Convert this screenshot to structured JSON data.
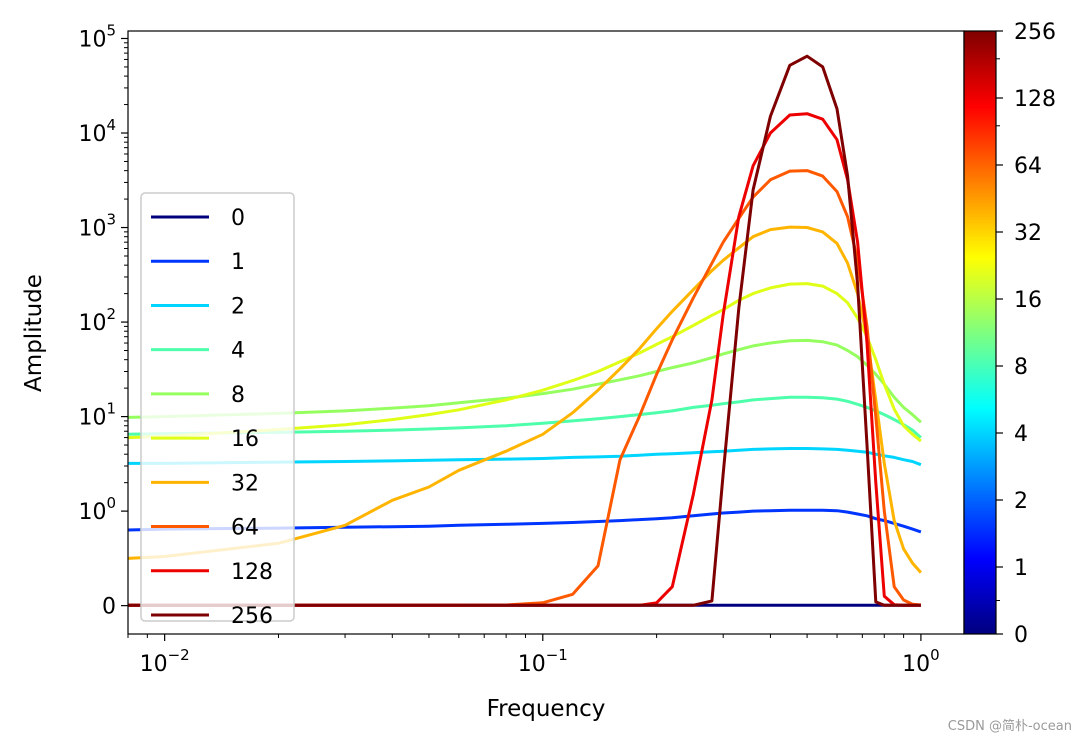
{
  "chart_data": {
    "type": "line",
    "title": "",
    "xlabel": "Frequency",
    "ylabel": "Amplitude",
    "xscale": "log",
    "yscale": "symlog",
    "xlim": [
      0.008,
      1.3
    ],
    "ylim": [
      -0.3,
      120000
    ],
    "grid": false,
    "legend_loc": "center-left",
    "x_ticks": [
      {
        "value": 0.01,
        "base": "10",
        "exp": "−2"
      },
      {
        "value": 0.1,
        "base": "10",
        "exp": "−1"
      },
      {
        "value": 1,
        "base": "10",
        "exp": "0"
      }
    ],
    "y_ticks": [
      {
        "value": 0,
        "label": "0",
        "base": "",
        "exp": ""
      },
      {
        "value": 1,
        "label": "",
        "base": "10",
        "exp": "0"
      },
      {
        "value": 10,
        "label": "",
        "base": "10",
        "exp": "1"
      },
      {
        "value": 100,
        "label": "",
        "base": "10",
        "exp": "2"
      },
      {
        "value": 1000,
        "label": "",
        "base": "10",
        "exp": "3"
      },
      {
        "value": 10000,
        "label": "",
        "base": "10",
        "exp": "4"
      },
      {
        "value": 100000,
        "label": "",
        "base": "10",
        "exp": "5"
      }
    ],
    "x": [
      0.008,
      0.01,
      0.02,
      0.03,
      0.04,
      0.05,
      0.06,
      0.08,
      0.1,
      0.12,
      0.14,
      0.16,
      0.18,
      0.2,
      0.22,
      0.25,
      0.28,
      0.3,
      0.33,
      0.36,
      0.4,
      0.45,
      0.5,
      0.55,
      0.6,
      0.64,
      0.68,
      0.72,
      0.76,
      0.8,
      0.85,
      0.9,
      0.95,
      1.0
    ],
    "series": [
      {
        "name": "0",
        "color": "#00007f",
        "values": [
          0.0035,
          0.0035,
          0.0035,
          0.0035,
          0.0035,
          0.0035,
          0.0035,
          0.0035,
          0.0035,
          0.0035,
          0.0035,
          0.0035,
          0.0035,
          0.0035,
          0.0035,
          0.0035,
          0.0035,
          0.0035,
          0.0035,
          0.0035,
          0.0035,
          0.0035,
          0.0035,
          0.0035,
          0.0035,
          0.0035,
          0.0035,
          0.0035,
          0.0035,
          0.0035,
          0.0035,
          0.0035,
          0.0035,
          0.0035
        ]
      },
      {
        "name": "1",
        "color": "#0035ff",
        "values": [
          0.8,
          0.81,
          0.82,
          0.83,
          0.835,
          0.84,
          0.85,
          0.86,
          0.87,
          0.88,
          0.89,
          0.9,
          0.91,
          0.92,
          0.93,
          0.95,
          0.97,
          0.98,
          0.99,
          1.0,
          1.01,
          1.02,
          1.02,
          1.02,
          1.01,
          0.99,
          0.97,
          0.95,
          0.92,
          0.9,
          0.87,
          0.84,
          0.81,
          0.78
        ]
      },
      {
        "name": "2",
        "color": "#00d5ff",
        "values": [
          3.2,
          3.2,
          3.3,
          3.35,
          3.4,
          3.45,
          3.5,
          3.55,
          3.6,
          3.7,
          3.75,
          3.8,
          3.9,
          4.0,
          4.05,
          4.15,
          4.25,
          4.3,
          4.4,
          4.5,
          4.55,
          4.6,
          4.6,
          4.55,
          4.5,
          4.4,
          4.3,
          4.2,
          4.0,
          3.85,
          3.7,
          3.5,
          3.35,
          3.1
        ]
      },
      {
        "name": "4",
        "color": "#4dffaa",
        "values": [
          6.5,
          6.6,
          6.8,
          7.0,
          7.2,
          7.4,
          7.6,
          8.0,
          8.5,
          9.0,
          9.5,
          10.0,
          10.5,
          11.0,
          11.5,
          12.5,
          13.2,
          13.7,
          14.3,
          15.0,
          15.5,
          16.0,
          16.0,
          15.8,
          15.3,
          14.5,
          13.5,
          12.5,
          11.5,
          10.5,
          9.3,
          8.2,
          7.2,
          6.0
        ]
      },
      {
        "name": "8",
        "color": "#96ff60",
        "values": [
          9.8,
          10.0,
          10.8,
          11.5,
          12.3,
          13.0,
          14.0,
          15.6,
          17.5,
          19.5,
          22.0,
          24.5,
          27.0,
          30.0,
          33.0,
          37.0,
          42.0,
          46.0,
          51.0,
          56.0,
          60.0,
          63.5,
          64.0,
          62.0,
          57.0,
          50.0,
          43.0,
          35.0,
          28.0,
          22.0,
          16.0,
          12.5,
          10.5,
          8.7
        ]
      },
      {
        "name": "16",
        "color": "#e0ff17",
        "values": [
          6.0,
          6.2,
          7.3,
          8.2,
          9.3,
          10.5,
          11.8,
          15.0,
          19.0,
          24.0,
          30.0,
          38.0,
          47.0,
          58.0,
          70.0,
          92.0,
          118.0,
          135.0,
          170.0,
          200.0,
          230.0,
          252.0,
          255.0,
          240.0,
          200.0,
          160.0,
          110.0,
          70.0,
          40.0,
          22.0,
          12.0,
          8.0,
          6.5,
          5.5
        ]
      },
      {
        "name": "32",
        "color": "#ffb500",
        "values": [
          0.5,
          0.52,
          0.66,
          0.85,
          1.3,
          1.8,
          2.7,
          4.3,
          6.5,
          11.0,
          19.0,
          32.0,
          52.0,
          85.0,
          130.0,
          220.0,
          350.0,
          450.0,
          610.0,
          800.0,
          950.0,
          1010.0,
          1000.0,
          900.0,
          680.0,
          420.0,
          200.0,
          70.0,
          15.0,
          3.2,
          0.9,
          0.6,
          0.45,
          0.35
        ]
      },
      {
        "name": "64",
        "color": "#ff5900",
        "values": [
          0.0035,
          0.0035,
          0.0035,
          0.0035,
          0.0035,
          0.0035,
          0.0038,
          0.007,
          0.03,
          0.12,
          0.42,
          3.5,
          10.0,
          28.0,
          65.0,
          180.0,
          420.0,
          700.0,
          1250.0,
          2100.0,
          3200.0,
          3950.0,
          4000.0,
          3500.0,
          2400.0,
          1300.0,
          450.0,
          90.0,
          10.0,
          1.0,
          0.2,
          0.06,
          0.015,
          0.007
        ]
      },
      {
        "name": "128",
        "color": "#ed0000",
        "values": [
          0.0035,
          0.0035,
          0.0035,
          0.0035,
          0.0035,
          0.0035,
          0.0035,
          0.0035,
          0.0035,
          0.0035,
          0.0035,
          0.0035,
          0.004,
          0.03,
          0.2,
          1.5,
          15.0,
          120.0,
          1300.0,
          4500.0,
          10000.0,
          15500.0,
          16000.0,
          14000.0,
          8500.0,
          3200.0,
          700.0,
          60.0,
          2.0,
          0.1,
          0.01,
          0.004,
          0.0035,
          0.0035
        ]
      },
      {
        "name": "256",
        "color": "#7f0000",
        "values": [
          0.0035,
          0.0035,
          0.0035,
          0.0035,
          0.0035,
          0.0035,
          0.0035,
          0.0035,
          0.0035,
          0.0035,
          0.0035,
          0.0035,
          0.0035,
          0.0035,
          0.0035,
          0.004,
          0.05,
          2.5,
          140.0,
          2500.0,
          15000.0,
          52000.0,
          65000.0,
          50000.0,
          18000.0,
          3500.0,
          250.0,
          5.0,
          0.04,
          0.0035,
          0.0035,
          0.0035,
          0.0035,
          0.0035
        ]
      }
    ],
    "colorbar": {
      "ticks": [
        {
          "value": 0,
          "label": "0"
        },
        {
          "value": 1,
          "label": "1"
        },
        {
          "value": 2,
          "label": "2"
        },
        {
          "value": 4,
          "label": "4"
        },
        {
          "value": 8,
          "label": "8"
        },
        {
          "value": 16,
          "label": "16"
        },
        {
          "value": 32,
          "label": "32"
        },
        {
          "value": 64,
          "label": "64"
        },
        {
          "value": 128,
          "label": "128"
        },
        {
          "value": 256,
          "label": "256"
        }
      ],
      "colormap": "jet",
      "colormap_stops": [
        "#00007f",
        "#0000ff",
        "#007fff",
        "#00ffff",
        "#7fff7f",
        "#ffff00",
        "#ff7f00",
        "#ff0000",
        "#7f0000"
      ]
    }
  },
  "watermark": "CSDN @简朴-ocean"
}
